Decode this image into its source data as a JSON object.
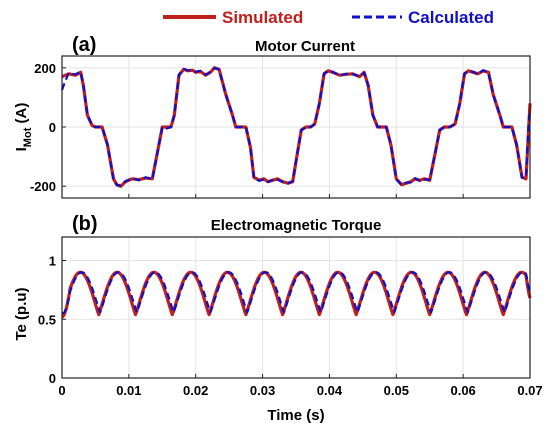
{
  "legend": {
    "simulated": "Simulated",
    "calculated": "Calculated",
    "simulated_color": "#c0201c",
    "calculated_color": "#1010c8"
  },
  "xlabel": "Time (s)",
  "chart_data": [
    {
      "type": "line",
      "panel": "(a)",
      "title": "Motor Current",
      "ylabel": "I_Mot (A)",
      "ylabel_main": "I",
      "ylabel_sub": "Mot",
      "ylabel_unit": " (A)",
      "xlim": [
        0,
        0.07
      ],
      "ylim": [
        -240,
        240
      ],
      "yticks": [
        -200,
        0,
        200
      ],
      "xticks": [
        0,
        0.01,
        0.02,
        0.03,
        0.04,
        0.05,
        0.06,
        0.07
      ],
      "grid": true,
      "series": [
        {
          "name": "Simulated",
          "color": "#c0201c",
          "x": [
            0,
            0.001,
            0.002,
            0.0028,
            0.0032,
            0.0038,
            0.0045,
            0.005,
            0.006,
            0.0068,
            0.0077,
            0.0082,
            0.0088,
            0.0095,
            0.0105,
            0.0115,
            0.0125,
            0.0135,
            0.0145,
            0.015,
            0.0157,
            0.0163,
            0.0168,
            0.0175,
            0.0182,
            0.0188,
            0.0195,
            0.02,
            0.0207,
            0.0215,
            0.0222,
            0.0228,
            0.0235,
            0.0245,
            0.0255,
            0.026,
            0.0268,
            0.0275,
            0.0282,
            0.0287,
            0.0295,
            0.0302,
            0.0308,
            0.0315,
            0.0322,
            0.033,
            0.0338,
            0.0345,
            0.0352,
            0.0358,
            0.0365,
            0.0372,
            0.0378,
            0.0385,
            0.0392,
            0.0398,
            0.0405,
            0.0415,
            0.0425,
            0.0435,
            0.0445,
            0.0452,
            0.0458,
            0.0465,
            0.0472,
            0.0478,
            0.0485,
            0.0492,
            0.05,
            0.0508,
            0.0515,
            0.0522,
            0.0528,
            0.0535,
            0.0542,
            0.055,
            0.0558,
            0.0565,
            0.0572,
            0.058,
            0.0588,
            0.0595,
            0.0602,
            0.0608,
            0.0615,
            0.0622,
            0.063,
            0.0638,
            0.0645,
            0.0655,
            0.066,
            0.0667,
            0.0673,
            0.068,
            0.0688,
            0.0694,
            0.07
          ],
          "values": [
            170,
            180,
            175,
            185,
            140,
            40,
            5,
            0,
            0,
            -60,
            -175,
            -195,
            -200,
            -185,
            -175,
            -178,
            -172,
            -175,
            -60,
            0,
            0,
            0,
            40,
            175,
            195,
            190,
            192,
            185,
            188,
            175,
            185,
            200,
            195,
            110,
            40,
            0,
            0,
            0,
            -70,
            -170,
            -180,
            -175,
            -185,
            -180,
            -175,
            -185,
            -190,
            -185,
            -90,
            -10,
            0,
            0,
            10,
            80,
            180,
            190,
            185,
            175,
            178,
            180,
            170,
            185,
            140,
            40,
            0,
            0,
            0,
            -60,
            -175,
            -195,
            -190,
            -185,
            -175,
            -180,
            -175,
            -180,
            -90,
            -10,
            0,
            0,
            10,
            80,
            180,
            190,
            185,
            180,
            190,
            185,
            110,
            40,
            0,
            0,
            0,
            -60,
            -170,
            -175,
            80
          ]
        },
        {
          "name": "Calculated",
          "color": "#1010c8",
          "x": [
            0,
            0.0004,
            0.001,
            0.002,
            0.0028,
            0.0032,
            0.0038,
            0.0045,
            0.005,
            0.006,
            0.0068,
            0.0077,
            0.0082,
            0.0088,
            0.0095,
            0.0105,
            0.0115,
            0.0125,
            0.0135,
            0.0145,
            0.015,
            0.0157,
            0.0163,
            0.0168,
            0.0175,
            0.0182,
            0.0188,
            0.0195,
            0.02,
            0.0207,
            0.0215,
            0.0222,
            0.0228,
            0.0235,
            0.0245,
            0.0255,
            0.026,
            0.0268,
            0.0275,
            0.0282,
            0.0287,
            0.0295,
            0.0302,
            0.0308,
            0.0315,
            0.0322,
            0.033,
            0.0338,
            0.0345,
            0.0352,
            0.0358,
            0.0365,
            0.0372,
            0.0378,
            0.0385,
            0.0392,
            0.0398,
            0.0405,
            0.0415,
            0.0425,
            0.0435,
            0.0445,
            0.0452,
            0.0458,
            0.0465,
            0.0472,
            0.0478,
            0.0485,
            0.0492,
            0.05,
            0.0508,
            0.0515,
            0.0522,
            0.0528,
            0.0535,
            0.0542,
            0.055,
            0.0558,
            0.0565,
            0.0572,
            0.058,
            0.0588,
            0.0595,
            0.0602,
            0.0608,
            0.0615,
            0.0622,
            0.063,
            0.0638,
            0.0645,
            0.0655,
            0.066,
            0.0667,
            0.0673,
            0.068,
            0.0688,
            0.0694,
            0.0698,
            0.07
          ],
          "values": [
            125,
            150,
            182,
            178,
            187,
            140,
            40,
            5,
            0,
            0,
            -60,
            -178,
            -196,
            -198,
            -183,
            -173,
            -180,
            -170,
            -177,
            -60,
            0,
            -5,
            0,
            40,
            178,
            196,
            192,
            190,
            187,
            190,
            177,
            187,
            200,
            193,
            110,
            40,
            0,
            0,
            0,
            -70,
            -172,
            -182,
            -176,
            -186,
            -178,
            -177,
            -186,
            -191,
            -183,
            -90,
            -10,
            0,
            0,
            10,
            80,
            182,
            188,
            187,
            173,
            180,
            178,
            172,
            183,
            140,
            40,
            0,
            0,
            0,
            -60,
            -177,
            -196,
            -188,
            -187,
            -173,
            -182,
            -177,
            -178,
            -90,
            -10,
            0,
            0,
            10,
            80,
            182,
            188,
            187,
            178,
            192,
            183,
            110,
            40,
            0,
            0,
            0,
            -60,
            -172,
            -170,
            20,
            60
          ]
        }
      ]
    },
    {
      "type": "line",
      "panel": "(b)",
      "title": "Electromagnetic Torque",
      "ylabel": "Te (p.u)",
      "xlim": [
        0,
        0.07
      ],
      "ylim": [
        0,
        1.2
      ],
      "yticks": [
        0,
        0.5,
        1
      ],
      "ytick_labels": [
        "0",
        "0.5",
        "1"
      ],
      "xticks": [
        0,
        0.01,
        0.02,
        0.03,
        0.04,
        0.05,
        0.06,
        0.07
      ],
      "xtick_labels": [
        "0",
        "0.01",
        "0.02",
        "0.03",
        "0.04",
        "0.05",
        "0.06",
        "0.07"
      ],
      "grid": true,
      "series": [
        {
          "name": "Simulated",
          "color": "#c0201c",
          "period": 0.0055,
          "phase": 0.0,
          "start": 0.52,
          "peak": 0.9,
          "trough": 0.54,
          "end": 0.68
        },
        {
          "name": "Calculated",
          "color": "#1010c8",
          "period": 0.0055,
          "phase": 0.0002,
          "start": 0.55,
          "peak": 0.9,
          "trough": 0.56,
          "end": 0.72
        }
      ]
    }
  ]
}
